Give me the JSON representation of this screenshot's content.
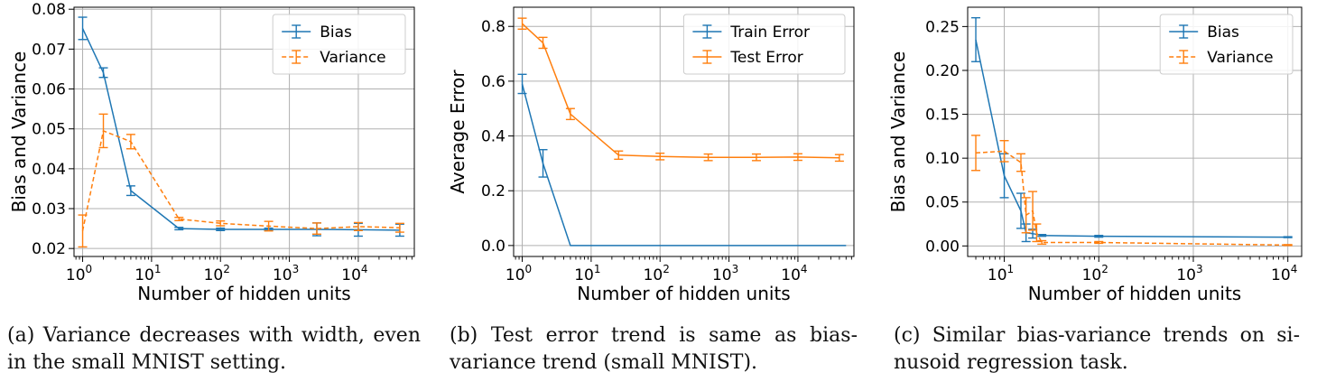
{
  "colors": {
    "blue": "#1f77b4",
    "orange": "#ff7f0e",
    "grid": "#b0b0b0",
    "axis": "#000000"
  },
  "chart_data": [
    {
      "type": "line",
      "xscale": "log",
      "xlim": [
        0.75,
        65000
      ],
      "ylim": [
        0.018,
        0.0805
      ],
      "xlabel": "Number of hidden units",
      "ylabel": "Bias and Variance",
      "xticks": [
        1,
        10,
        100,
        1000,
        10000
      ],
      "xtick_labels": [
        [
          "10",
          "0"
        ],
        [
          "10",
          "1"
        ],
        [
          "10",
          "2"
        ],
        [
          "10",
          "3"
        ],
        [
          "10",
          "4"
        ]
      ],
      "yticks": [
        0.02,
        0.03,
        0.04,
        0.05,
        0.06,
        0.07,
        0.08
      ],
      "ytick_labels": [
        "0.02",
        "0.03",
        "0.04",
        "0.05",
        "0.06",
        "0.07",
        "0.08"
      ],
      "grid": true,
      "legend_position": "top-right",
      "series": [
        {
          "name": "Bias",
          "color": "#1f77b4",
          "style": "solid",
          "x": [
            1,
            2,
            5,
            25,
            100,
            500,
            2500,
            10000,
            40000
          ],
          "y": [
            0.0752,
            0.0641,
            0.0345,
            0.025,
            0.0248,
            0.0248,
            0.0248,
            0.0247,
            0.0246
          ],
          "err": [
            0.0028,
            0.0012,
            0.0012,
            0.0003,
            0.0003,
            0.0003,
            0.0016,
            0.0016,
            0.0015
          ]
        },
        {
          "name": "Variance",
          "color": "#ff7f0e",
          "style": "dashed",
          "x": [
            1,
            2,
            5,
            25,
            100,
            500,
            2500,
            10000,
            40000
          ],
          "y": [
            0.0244,
            0.0495,
            0.0468,
            0.0274,
            0.0263,
            0.0256,
            0.025,
            0.0255,
            0.0252
          ],
          "err": [
            0.004,
            0.0042,
            0.0018,
            0.0004,
            0.0006,
            0.0012,
            0.0014,
            0.001,
            0.0011
          ]
        }
      ]
    },
    {
      "type": "line",
      "xscale": "log",
      "xlim": [
        0.75,
        65000
      ],
      "ylim": [
        -0.04,
        0.87
      ],
      "xlabel": "Number of hidden units",
      "ylabel": "Average Error",
      "xticks": [
        1,
        10,
        100,
        1000,
        10000
      ],
      "xtick_labels": [
        [
          "10",
          "0"
        ],
        [
          "10",
          "1"
        ],
        [
          "10",
          "2"
        ],
        [
          "10",
          "3"
        ],
        [
          "10",
          "4"
        ]
      ],
      "yticks": [
        0.0,
        0.2,
        0.4,
        0.6,
        0.8
      ],
      "ytick_labels": [
        "0.0",
        "0.2",
        "0.4",
        "0.6",
        "0.8"
      ],
      "grid": true,
      "legend_position": "top-right",
      "series": [
        {
          "name": "Train Error",
          "color": "#1f77b4",
          "style": "solid",
          "x": [
            1,
            2,
            5,
            25,
            100,
            500,
            2500,
            10000,
            50000
          ],
          "y": [
            0.59,
            0.3,
            0.0,
            0.0,
            0.0,
            0.0,
            0.0,
            0.0,
            0.0
          ],
          "err": [
            0.035,
            0.05,
            0,
            0,
            0,
            0,
            0,
            0,
            0
          ]
        },
        {
          "name": "Test Error",
          "color": "#ff7f0e",
          "style": "solid",
          "x": [
            1,
            2,
            5,
            25,
            100,
            500,
            2500,
            10000,
            40000
          ],
          "y": [
            0.81,
            0.74,
            0.48,
            0.33,
            0.325,
            0.322,
            0.322,
            0.323,
            0.32
          ],
          "err": [
            0.02,
            0.02,
            0.02,
            0.015,
            0.012,
            0.012,
            0.012,
            0.012,
            0.012
          ]
        }
      ]
    },
    {
      "type": "line",
      "xscale": "log",
      "xlim": [
        4.1,
        14000
      ],
      "ylim": [
        -0.012,
        0.272
      ],
      "xlabel": "Number of hidden units",
      "ylabel": "Bias and Variance",
      "xticks": [
        10,
        100,
        1000,
        10000
      ],
      "xtick_labels": [
        [
          "10",
          "1"
        ],
        [
          "10",
          "2"
        ],
        [
          "10",
          "3"
        ],
        [
          "10",
          "4"
        ]
      ],
      "yticks": [
        0.0,
        0.05,
        0.1,
        0.15,
        0.2,
        0.25
      ],
      "ytick_labels": [
        "0.00",
        "0.05",
        "0.10",
        "0.15",
        "0.20",
        "0.25"
      ],
      "grid": true,
      "legend_position": "top-right",
      "series": [
        {
          "name": "Bias",
          "color": "#1f77b4",
          "style": "solid",
          "x": [
            5,
            10,
            15,
            17,
            20,
            25,
            100,
            10000
          ],
          "y": [
            0.235,
            0.08,
            0.04,
            0.015,
            0.014,
            0.012,
            0.011,
            0.01
          ],
          "err": [
            0.025,
            0.025,
            0.02,
            0.01,
            0.005,
            0.001,
            0.001,
            0.0005
          ]
        },
        {
          "name": "Variance",
          "color": "#ff7f0e",
          "style": "dashed",
          "x": [
            5,
            10,
            15,
            17,
            20,
            22,
            25,
            100,
            10000
          ],
          "y": [
            0.106,
            0.108,
            0.095,
            0.035,
            0.04,
            0.015,
            0.004,
            0.004,
            0.001
          ],
          "err": [
            0.02,
            0.012,
            0.01,
            0.02,
            0.022,
            0.01,
            0.002,
            0.001,
            0.0005
          ]
        }
      ]
    }
  ],
  "captions": [
    {
      "tag": "(a)",
      "line1": "Variance decreases with width, even",
      "line2": "in the small MNIST setting."
    },
    {
      "tag": "(b)",
      "line1": "Test error trend is same as bias-",
      "line2": "variance trend (small MNIST)."
    },
    {
      "tag": "(c)",
      "line1": "Similar bias-variance trends on si-",
      "line2": "nusoid regression task."
    }
  ]
}
